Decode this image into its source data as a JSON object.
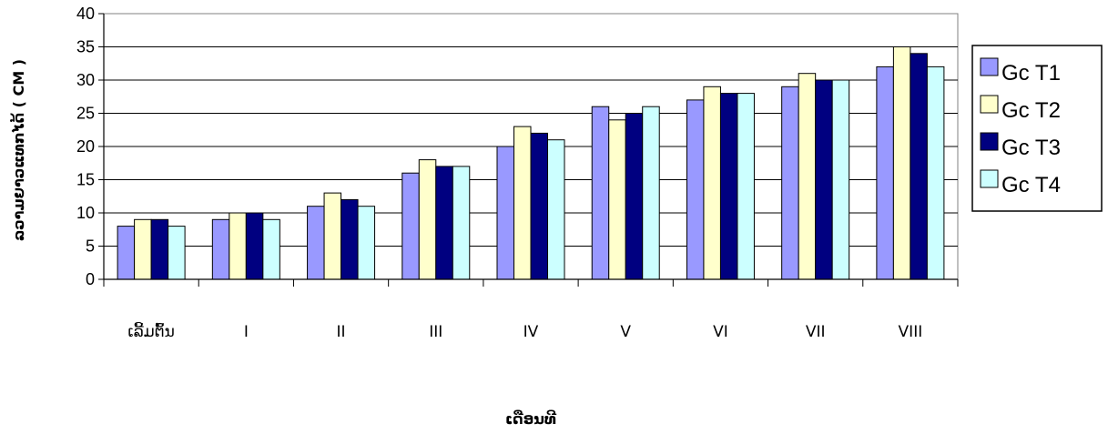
{
  "chart_data": {
    "type": "bar",
    "xlabel": "ເດືອນທີ",
    "ylabel": "ລວາມຍາວແທກໄດ້ ( CM )",
    "ylim": [
      0,
      40
    ],
    "yticks": [
      0,
      5,
      10,
      15,
      20,
      25,
      30,
      35,
      40
    ],
    "grid": true,
    "legend_position": "right",
    "categories": [
      "ເລີ້ມຕົ້ນ",
      "I",
      "II",
      "III",
      "IV",
      "V",
      "VI",
      "VII",
      "VIII"
    ],
    "series": [
      {
        "name": "Gc T1",
        "color": "#9999ff",
        "values": [
          8,
          9,
          11,
          16,
          20,
          26,
          27,
          29,
          32
        ]
      },
      {
        "name": "Gc T2",
        "color": "#ffffcc",
        "values": [
          9,
          10,
          13,
          18,
          23,
          24,
          29,
          31,
          35
        ]
      },
      {
        "name": "Gc T3",
        "color": "#000080",
        "values": [
          9,
          10,
          12,
          17,
          22,
          25,
          28,
          30,
          34
        ]
      },
      {
        "name": "Gc T4",
        "color": "#ccffff",
        "values": [
          8,
          9,
          11,
          17,
          21,
          26,
          28,
          30,
          32
        ]
      }
    ]
  }
}
